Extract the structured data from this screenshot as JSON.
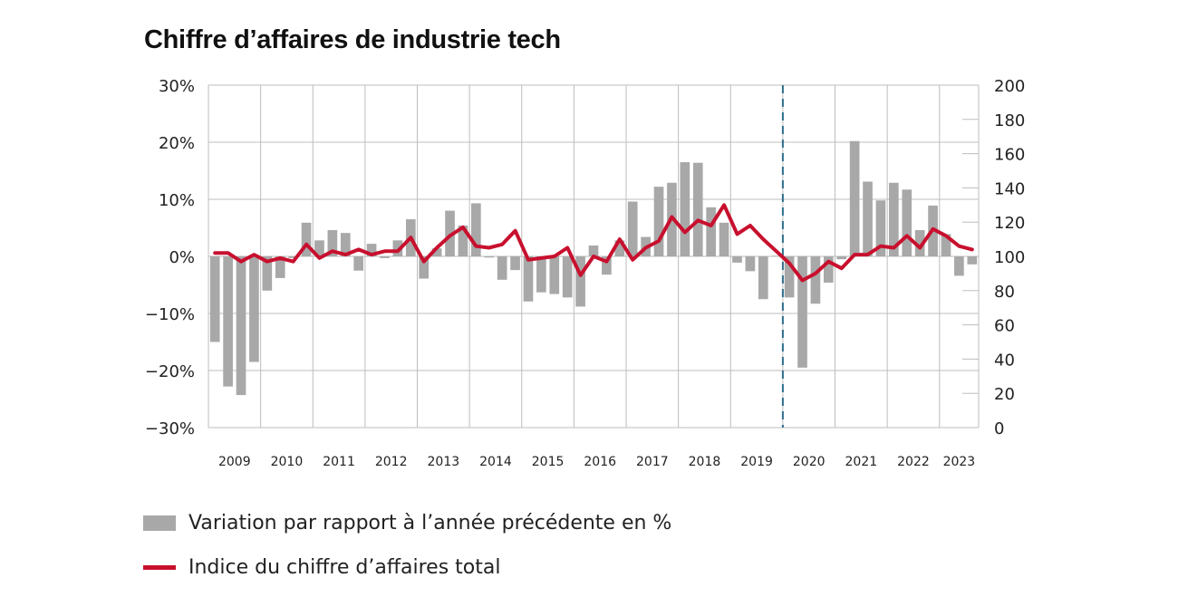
{
  "title": "Chiffre d’affaires de industrie tech",
  "colors": {
    "bars": "#a8a8a8",
    "line": "#c8102e",
    "grid": "#bdbdbd",
    "divider": "#2f6e8c"
  },
  "legend": {
    "bars_label": "Variation par rapport à l’année précédente en %",
    "line_label": "Indice du chiffre d’affaires total"
  },
  "chart_data": {
    "type": "bar",
    "title": "Chiffre d’affaires de industrie tech",
    "xlabel": "",
    "ylabel": "",
    "grid": true,
    "legend_position": "bottom-left",
    "x_tick_labels": [
      "2009",
      "2010",
      "2011",
      "2012",
      "2013",
      "2014",
      "2015",
      "2016",
      "2017",
      "2018",
      "2019",
      "2020",
      "2021",
      "2022",
      "2023"
    ],
    "y_left": {
      "ticks": [
        "30%",
        "20%",
        "10%",
        "0%",
        "−10%",
        "−20%",
        "−30%"
      ],
      "lim": [
        -30,
        30
      ]
    },
    "y_right": {
      "ticks": [
        "200",
        "180",
        "160",
        "140",
        "120",
        "100",
        "80",
        "60",
        "40",
        "20",
        "0"
      ],
      "lim": [
        0,
        200
      ]
    },
    "divider_after_quarter": 44,
    "series": [
      {
        "name": "Variation par rapport à l’année précédente en %",
        "type": "bar",
        "axis": "left",
        "values": [
          -15.0,
          -22.8,
          -24.3,
          -18.5,
          -6.0,
          -3.8,
          -0.3,
          5.9,
          2.8,
          4.6,
          4.1,
          -2.5,
          2.2,
          -0.3,
          2.8,
          6.5,
          -3.9,
          1.4,
          8.0,
          5.4,
          9.3,
          -0.2,
          -4.1,
          -2.4,
          -7.9,
          -6.3,
          -6.6,
          -7.2,
          -8.8,
          1.9,
          -3.2,
          2.8,
          9.6,
          3.4,
          12.2,
          12.9,
          16.5,
          16.4,
          8.6,
          5.9,
          -1.1,
          -2.6,
          -7.5,
          0.1,
          -7.2,
          -19.5,
          -8.3,
          -4.6,
          -0.5,
          20.2,
          13.1,
          9.8,
          12.9,
          11.7,
          4.6,
          8.9,
          3.9,
          -3.4,
          -1.4
        ]
      },
      {
        "name": "Indice du chiffre d’affaires total",
        "type": "line",
        "axis": "right",
        "values": [
          102,
          102,
          97,
          101,
          97,
          99,
          97,
          107,
          99,
          103,
          101,
          104,
          101,
          103,
          103,
          111,
          97,
          105,
          112,
          117,
          106,
          105,
          107,
          115,
          98,
          99,
          100,
          105,
          89,
          100,
          97,
          110,
          98,
          105,
          109,
          123,
          114,
          121,
          118,
          130,
          113,
          118,
          110,
          103,
          96,
          86,
          90,
          97,
          93,
          101,
          101,
          106,
          105,
          112,
          105,
          116,
          112,
          106,
          104
        ]
      }
    ]
  }
}
